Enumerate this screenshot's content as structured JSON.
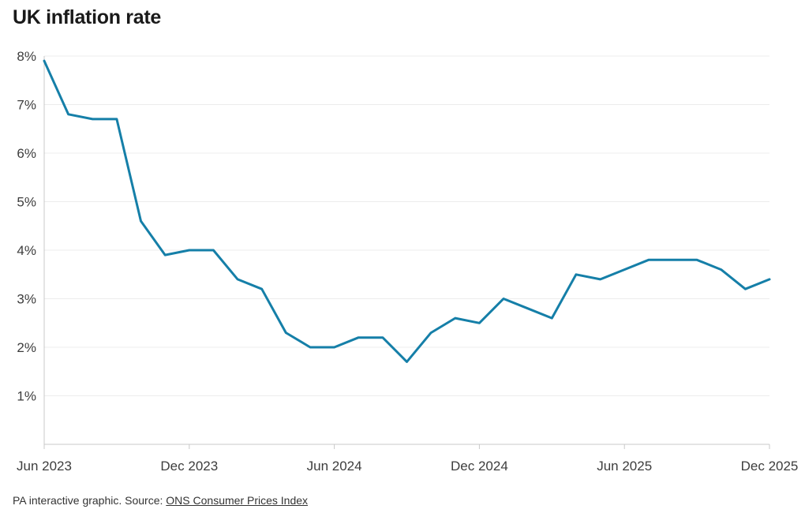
{
  "title": "UK inflation rate",
  "footer": {
    "prefix": "PA interactive graphic. Source: ",
    "link_label": "ONS Consumer Prices Index"
  },
  "chart_data": {
    "type": "line",
    "title": "UK inflation rate",
    "unit": "%",
    "x": [
      "Jun 2023",
      "Jul 2023",
      "Aug 2023",
      "Sep 2023",
      "Oct 2023",
      "Nov 2023",
      "Dec 2023",
      "Jan 2024",
      "Feb 2024",
      "Mar 2024",
      "Apr 2024",
      "May 2024",
      "Jun 2024",
      "Jul 2024",
      "Aug 2024",
      "Sep 2024",
      "Oct 2024",
      "Nov 2024",
      "Dec 2024",
      "Jan 2025",
      "Feb 2025",
      "Mar 2025",
      "Apr 2025",
      "May 2025",
      "Jun 2025",
      "Jul 2025",
      "Aug 2025",
      "Sep 2025",
      "Oct 2025",
      "Nov 2025",
      "Dec 2025"
    ],
    "values": [
      7.9,
      6.8,
      6.7,
      6.7,
      4.6,
      3.9,
      4.0,
      4.0,
      3.4,
      3.2,
      2.3,
      2.0,
      2.0,
      2.2,
      2.2,
      1.7,
      2.3,
      2.6,
      2.5,
      3.0,
      2.8,
      2.6,
      3.5,
      3.4,
      3.6,
      3.8,
      3.8,
      3.8,
      3.6,
      3.2,
      3.4
    ],
    "ylim": [
      0,
      8
    ],
    "y_tick_labels": [
      "1%",
      "2%",
      "3%",
      "4%",
      "5%",
      "6%",
      "7%",
      "8%"
    ],
    "y_tick_values": [
      1,
      2,
      3,
      4,
      5,
      6,
      7,
      8
    ],
    "x_tick_labels": [
      "Jun 2023",
      "Dec 2023",
      "Jun 2024",
      "Dec 2024",
      "Jun 2025",
      "Dec 2025"
    ],
    "x_tick_month_index": [
      0,
      6,
      12,
      18,
      24,
      30
    ],
    "line_color": "#157fa8",
    "grid": true,
    "legend": "none"
  }
}
